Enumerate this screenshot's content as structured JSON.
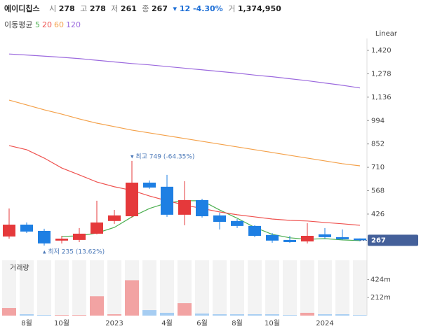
{
  "header": {
    "name": "에이디칩스",
    "fields": [
      {
        "label": "시",
        "value": "278"
      },
      {
        "label": "고",
        "value": "278"
      },
      {
        "label": "저",
        "value": "261"
      },
      {
        "label": "종",
        "value": "267"
      }
    ],
    "change": "▾ 12 -4.30%",
    "volume": {
      "label": "거",
      "value": "1,374,950"
    }
  },
  "chart_data": {
    "type": "candlestick",
    "scale_label": "Linear",
    "legend_title": "이동평균",
    "categories": [
      null,
      "8월",
      null,
      "10월",
      null,
      null,
      "2023",
      null,
      null,
      "4월",
      null,
      "6월",
      null,
      "8월",
      null,
      "10월",
      null,
      null,
      "2024",
      null,
      null
    ],
    "open": [
      290,
      362,
      324,
      265,
      269,
      307,
      384,
      413,
      617,
      592,
      422,
      511,
      418,
      384,
      354,
      299,
      269,
      260,
      303,
      286,
      278
    ],
    "high": [
      460,
      375,
      337,
      294,
      341,
      507,
      451,
      749,
      630,
      664,
      626,
      519,
      434,
      396,
      358,
      311,
      294,
      371,
      341,
      333,
      278
    ],
    "low": [
      277,
      311,
      235,
      248,
      256,
      303,
      367,
      405,
      579,
      409,
      358,
      405,
      333,
      341,
      286,
      252,
      252,
      248,
      277,
      269,
      261
    ],
    "close": [
      362,
      320,
      248,
      277,
      307,
      375,
      418,
      617,
      587,
      422,
      511,
      413,
      379,
      354,
      294,
      265,
      256,
      294,
      286,
      273,
      267
    ],
    "up_color": "#e5393b",
    "down_color": "#1e7fe3",
    "series": [
      {
        "name": "5",
        "color": "#4caf50",
        "values": [
          null,
          null,
          null,
          290,
          294,
          311,
          345,
          409,
          460,
          494,
          507,
          507,
          451,
          401,
          345,
          303,
          282,
          273,
          277,
          269,
          265
        ]
      },
      {
        "name": "20",
        "color": "#ef5350",
        "values": [
          842,
          817,
          766,
          706,
          664,
          621,
          592,
          570,
          536,
          507,
          481,
          460,
          439,
          422,
          409,
          396,
          388,
          384,
          375,
          367,
          358
        ]
      },
      {
        "name": "60",
        "color": "#f4a14a",
        "values": [
          1118,
          1089,
          1059,
          1033,
          1004,
          978,
          957,
          936,
          919,
          902,
          885,
          868,
          851,
          834,
          817,
          800,
          783,
          766,
          749,
          732,
          719
        ]
      },
      {
        "name": "120",
        "color": "#9c6ade",
        "values": [
          1398,
          1392,
          1385,
          1378,
          1370,
          1360,
          1350,
          1340,
          1332,
          1322,
          1312,
          1302,
          1292,
          1282,
          1270,
          1260,
          1248,
          1236,
          1222,
          1208,
          1192
        ]
      }
    ],
    "ylim": [
      175,
      1471
    ],
    "yticks": [
      {
        "value": 1420,
        "label": "1,420"
      },
      {
        "value": 1278,
        "label": "1,278"
      },
      {
        "value": 1136,
        "label": "1,136"
      },
      994,
      852,
      710,
      568,
      426
    ],
    "last_price": 267,
    "annotations": [
      "▾ 최고 749 (-64.35%)",
      "▴ 최저 235 (13.62%)"
    ],
    "volume": {
      "label": "거래량",
      "values": [
        90000000,
        16000000,
        8000000,
        8000000,
        8000000,
        228000000,
        16000000,
        416000000,
        65000000,
        33000000,
        147000000,
        24000000,
        16000000,
        16000000,
        16000000,
        16000000,
        8000000,
        33000000,
        16000000,
        16000000,
        8000000
      ],
      "up_color": "#f2a3a3",
      "down_color": "#a6cdf2",
      "ylim": [
        0,
        650000000
      ],
      "yticks": [
        {
          "value": 424000000,
          "label": "424m"
        },
        {
          "value": 212000000,
          "label": "212m"
        }
      ]
    }
  }
}
